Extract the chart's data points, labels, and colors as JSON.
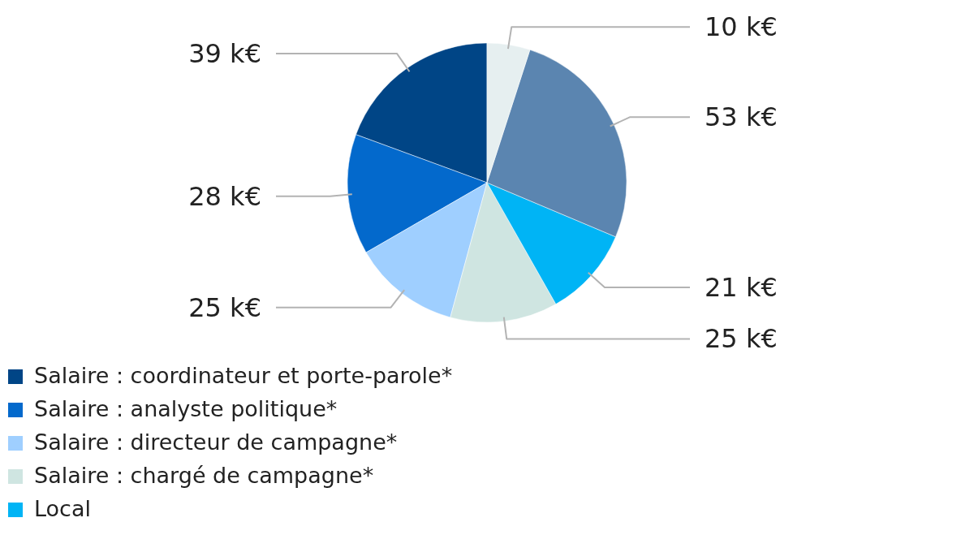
{
  "chart_data": {
    "type": "pie",
    "categories": [
      "Salaire : coordinateur et porte-parole*",
      "Salaire : analyste politique*",
      "Salaire : directeur de campagne*",
      "Salaire : chargé de campagne*",
      "Local",
      null,
      null
    ],
    "values": [
      39,
      28,
      25,
      25,
      21,
      53,
      10
    ],
    "value_labels": [
      "39 k€",
      "28 k€",
      "25 k€",
      "25 k€",
      "21 k€",
      "53 k€",
      "10 k€"
    ],
    "colors": [
      "#004586",
      "#0369cc",
      "#9fcfff",
      "#cfe5e1",
      "#00b4f5",
      "#5b85b0",
      "#e6eff0"
    ],
    "legend": "bottom left"
  }
}
